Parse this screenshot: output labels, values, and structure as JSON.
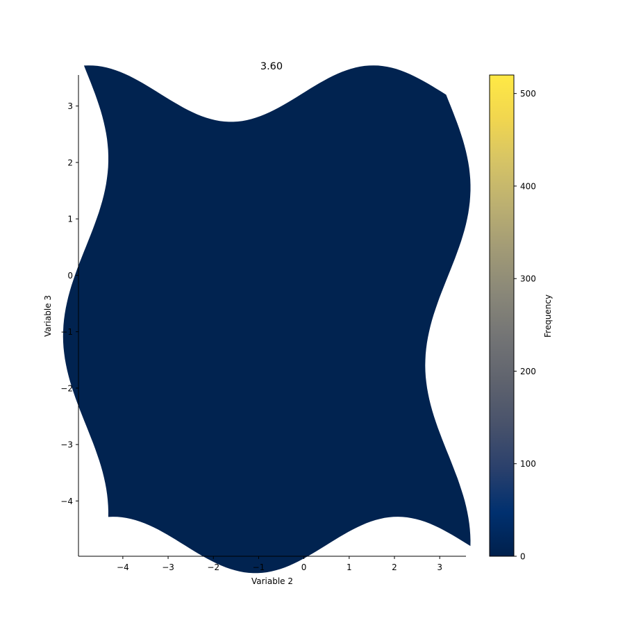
{
  "chart_data": {
    "type": "heatmap",
    "title": "3.60",
    "xlabel": "Variable 2",
    "ylabel": "Variable 3",
    "xlim": [
      -4.98,
      3.58
    ],
    "ylim": [
      -4.98,
      3.55
    ],
    "x_ticks": [
      -4,
      -3,
      -2,
      -1,
      0,
      1,
      2,
      3
    ],
    "y_ticks": [
      -4,
      -3,
      -2,
      -1,
      0,
      1,
      2,
      3
    ],
    "x_tick_labels": [
      "−4",
      "−3",
      "−2",
      "−1",
      "0",
      "1",
      "2",
      "3"
    ],
    "y_tick_labels": [
      "−4",
      "−3",
      "−2",
      "−1",
      "0",
      "1",
      "2",
      "3"
    ],
    "grid": false,
    "field": {
      "x_range": [
        -4.82,
        3.18
      ],
      "y_range": [
        -4.78,
        3.22
      ],
      "warp_amplitude": 0.5,
      "value": 0,
      "color": "#012350"
    },
    "colorbar": {
      "label": "Frequency",
      "colormap": "cividis",
      "range": [
        0,
        520
      ],
      "ticks": [
        0,
        100,
        200,
        300,
        400,
        500
      ],
      "tick_labels": [
        "0",
        "100",
        "200",
        "300",
        "400",
        "500"
      ],
      "colors": [
        "#00204c",
        "#00306f",
        "#2a406c",
        "#48526b",
        "#5f636e",
        "#737475",
        "#898778",
        "#a19a76",
        "#bbaf71",
        "#d5c366",
        "#f1d64f",
        "#ffe945"
      ]
    }
  }
}
